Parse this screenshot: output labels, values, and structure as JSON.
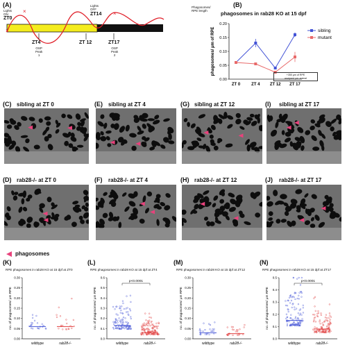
{
  "panelA": {
    "letter": "(A)",
    "lights_on": [
      "Lights",
      "ON"
    ],
    "zt0": "ZT0",
    "lights_off": [
      "Lights",
      "OFF"
    ],
    "zt14": "ZT14",
    "legend": [
      "Phagosomes/",
      "RPE length"
    ],
    "ticks": [
      {
        "label": "ZT4",
        "sub": [
          "OSP",
          "Peak",
          "1"
        ]
      },
      {
        "label": "ZT 12",
        "sub": []
      },
      {
        "label": "ZT17",
        "sub": [
          "OSP",
          "Peak",
          "2"
        ]
      }
    ],
    "colors": {
      "light": "#f4ec1e",
      "dark": "#111111",
      "curve": "#e0202a"
    }
  },
  "panelB": {
    "letter": "(B)",
    "title": "phagosomes in rab28 KO at 15 dpf",
    "ylabel": "phagosomes/ μm of RPE",
    "note": [
      "+350 μm of RPE",
      "analyzed per animal"
    ],
    "chart_data": {
      "type": "line",
      "categories": [
        "ZT 0",
        "ZT 4",
        "ZT 12",
        "ZT 17"
      ],
      "ylim": [
        0,
        0.2
      ],
      "yticks": [
        "0.00",
        "0.05",
        "0.10",
        "0.15",
        "0.20"
      ],
      "series": [
        {
          "name": "sibling",
          "color": "#4353d6",
          "values": [
            0.06,
            0.13,
            0.04,
            0.16
          ],
          "err": [
            0.003,
            0.015,
            0.003,
            0.008
          ]
        },
        {
          "name": "mutant",
          "color": "#e86a6a",
          "values": [
            0.06,
            0.055,
            0.025,
            0.08
          ],
          "err": [
            0.003,
            0.004,
            0.003,
            0.018
          ]
        }
      ]
    }
  },
  "micrographs": [
    {
      "letter": "(C)",
      "title": "sibling at ZT 0"
    },
    {
      "letter": "(E)",
      "title": "sibling at ZT 4"
    },
    {
      "letter": "(G)",
      "title": "sibling at ZT 12"
    },
    {
      "letter": "(I)",
      "title": "sibling at ZT 17"
    },
    {
      "letter": "(D)",
      "title": "rab28-/- at ZT 0"
    },
    {
      "letter": "(F)",
      "title": "rab28-/- at ZT 4"
    },
    {
      "letter": "(H)",
      "title": "rab28-/- at ZT 12"
    },
    {
      "letter": "(J)",
      "title": "rab28-/- at ZT 17"
    }
  ],
  "phago_legend": "phagosomes",
  "arrow_color": "#e8427c",
  "scatter": [
    {
      "letter": "(K)",
      "title": "RPE phagosomes in rab28 KO at 15 dpf at ZT0",
      "ylabel": "no. of phagosomes/ μm RPE",
      "yticks": [
        "0.00",
        "0.05",
        "0.10",
        "0.15",
        "0.20",
        "0.25",
        "0.30"
      ],
      "ymax": 0.3,
      "groups": [
        "wildtype",
        "rab28-/-"
      ],
      "pvalue": "",
      "n": [
        22,
        20
      ],
      "spread": [
        0.07,
        0.09
      ],
      "center": [
        0.06,
        0.06
      ]
    },
    {
      "letter": "(L)",
      "title": "RPE phagosomes in rab28 KO at 15 dpf at ZT4",
      "ylabel": "no. of phagosomes/ μm RPE",
      "yticks": [
        "0.0",
        "0.1",
        "0.2",
        "0.3",
        "0.4",
        "0.5",
        "0.6"
      ],
      "ymax": 0.6,
      "groups": [
        "wildtype",
        "rab28-/-"
      ],
      "pvalue": "p<0.0001",
      "n": [
        110,
        120
      ],
      "spread": [
        0.22,
        0.12
      ],
      "center": [
        0.13,
        0.06
      ]
    },
    {
      "letter": "(M)",
      "title": "RPE phagosomes in rab28 KO at 15 dpf at ZT12",
      "ylabel": "no. of phagosomes/ μm RPE",
      "yticks": [
        "0.00",
        "0.05",
        "0.10",
        "0.15",
        "0.20",
        "0.25",
        "0.30"
      ],
      "ymax": 0.3,
      "groups": [
        "wildtype",
        "rab28-/-"
      ],
      "pvalue": "",
      "n": [
        25,
        25
      ],
      "spread": [
        0.06,
        0.05
      ],
      "center": [
        0.03,
        0.025
      ]
    },
    {
      "letter": "(N)",
      "title": "RPE phagosomes in rab28 KO at 15 dpf at ZT17",
      "ylabel": "no. of phagosomes/ μm RPE",
      "yticks": [
        "0.0",
        "0.1",
        "0.2",
        "0.3",
        "0.4",
        "0.5"
      ],
      "ymax": 0.5,
      "groups": [
        "wildtype",
        "rab28-/-"
      ],
      "pvalue": "p<0.0001",
      "n": [
        120,
        110
      ],
      "spread": [
        0.28,
        0.18
      ],
      "center": [
        0.15,
        0.08
      ]
    }
  ],
  "scatter_colors": [
    "#4353d6",
    "#e03b3b"
  ]
}
